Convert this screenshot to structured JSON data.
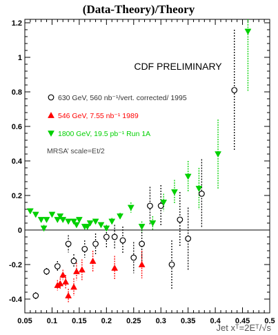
{
  "chart_data": {
    "type": "scatter",
    "title": "(Data-Theory)/Theory",
    "xlabel": "Jet xᵀ=2Eᵀ/√s",
    "ylabel": "",
    "xlim": [
      0.05,
      0.5
    ],
    "ylim": [
      -0.48,
      1.22
    ],
    "x_ticks": [
      "0.05",
      "0.1",
      "0.15",
      "0.2",
      "0.25",
      "0.3",
      "0.35",
      "0.4",
      "0.45",
      "0.5"
    ],
    "y_ticks": [
      "-0.4",
      "-0.2",
      "0",
      "0.2",
      "0.4",
      "0.6",
      "0.8",
      "1",
      "1.2"
    ],
    "annotation": "CDF PRELIMINARY",
    "grid": false,
    "legend_position": "left",
    "legend_note": "MRSA’ scale=Et/2",
    "series": [
      {
        "name": "630 GeV, 560 nb⁻¹/vert. corrected/ 1995",
        "marker": "open-circle",
        "color": "#000000",
        "points": [
          {
            "x": 0.07,
            "y": -0.38,
            "err": 0.02
          },
          {
            "x": 0.09,
            "y": -0.24,
            "err": 0.02
          },
          {
            "x": 0.11,
            "y": -0.21,
            "err": 0.03
          },
          {
            "x": 0.13,
            "y": -0.08,
            "err": 0.05
          },
          {
            "x": 0.14,
            "y": -0.18,
            "err": 0.04
          },
          {
            "x": 0.16,
            "y": -0.11,
            "err": 0.05
          },
          {
            "x": 0.18,
            "y": -0.08,
            "err": 0.06
          },
          {
            "x": 0.2,
            "y": -0.04,
            "err": 0.06
          },
          {
            "x": 0.215,
            "y": -0.04,
            "err": 0.07
          },
          {
            "x": 0.23,
            "y": -0.06,
            "err": 0.08
          },
          {
            "x": 0.25,
            "y": -0.16,
            "err": 0.09
          },
          {
            "x": 0.265,
            "y": -0.08,
            "err": 0.1
          },
          {
            "x": 0.28,
            "y": 0.14,
            "err": 0.11
          },
          {
            "x": 0.3,
            "y": 0.14,
            "err": 0.12
          },
          {
            "x": 0.32,
            "y": -0.2,
            "err": 0.14
          },
          {
            "x": 0.335,
            "y": 0.06,
            "err": 0.16
          },
          {
            "x": 0.35,
            "y": -0.05,
            "err": 0.18
          },
          {
            "x": 0.375,
            "y": 0.21,
            "err": 0.2
          },
          {
            "x": 0.435,
            "y": 0.81,
            "err": 0.35
          }
        ]
      },
      {
        "name": "546 GeV, 7.55 nb⁻¹ 1989",
        "marker": "filled-triangle-up",
        "color": "#ff0000",
        "points": [
          {
            "x": 0.11,
            "y": -0.32,
            "err": 0.03
          },
          {
            "x": 0.115,
            "y": -0.31,
            "err": 0.03
          },
          {
            "x": 0.12,
            "y": -0.26,
            "err": 0.03
          },
          {
            "x": 0.125,
            "y": -0.3,
            "err": 0.04
          },
          {
            "x": 0.13,
            "y": -0.38,
            "err": 0.04
          },
          {
            "x": 0.14,
            "y": -0.33,
            "err": 0.05
          },
          {
            "x": 0.145,
            "y": -0.24,
            "err": 0.05
          },
          {
            "x": 0.155,
            "y": -0.23,
            "err": 0.06
          },
          {
            "x": 0.175,
            "y": -0.18,
            "err": 0.06
          },
          {
            "x": 0.215,
            "y": -0.22,
            "err": 0.07
          },
          {
            "x": 0.265,
            "y": -0.2,
            "err": 0.08
          }
        ]
      },
      {
        "name": "1800 GeV, 19.5 pb⁻¹ Run 1A",
        "marker": "filled-triangle-down",
        "color": "#00d000",
        "points": [
          {
            "x": 0.06,
            "y": 0.11,
            "err": 0.01
          },
          {
            "x": 0.07,
            "y": 0.09,
            "err": 0.01
          },
          {
            "x": 0.08,
            "y": 0.06,
            "err": 0.01
          },
          {
            "x": 0.085,
            "y": 0.01,
            "err": 0.02
          },
          {
            "x": 0.09,
            "y": 0.06,
            "err": 0.01
          },
          {
            "x": 0.1,
            "y": 0.09,
            "err": 0.01
          },
          {
            "x": 0.11,
            "y": 0.06,
            "err": 0.01
          },
          {
            "x": 0.115,
            "y": 0.08,
            "err": 0.01
          },
          {
            "x": 0.12,
            "y": 0.06,
            "err": 0.01
          },
          {
            "x": 0.13,
            "y": 0.05,
            "err": 0.01
          },
          {
            "x": 0.14,
            "y": 0.05,
            "err": 0.01
          },
          {
            "x": 0.145,
            "y": 0.03,
            "err": 0.01
          },
          {
            "x": 0.15,
            "y": 0.06,
            "err": 0.01
          },
          {
            "x": 0.16,
            "y": 0.02,
            "err": 0.01
          },
          {
            "x": 0.165,
            "y": 0.02,
            "err": 0.01
          },
          {
            "x": 0.17,
            "y": 0.04,
            "err": 0.01
          },
          {
            "x": 0.18,
            "y": 0.05,
            "err": 0.01
          },
          {
            "x": 0.19,
            "y": 0.03,
            "err": 0.01
          },
          {
            "x": 0.2,
            "y": 0.01,
            "err": 0.02
          },
          {
            "x": 0.21,
            "y": 0.05,
            "err": 0.02
          },
          {
            "x": 0.225,
            "y": 0.08,
            "err": 0.02
          },
          {
            "x": 0.245,
            "y": 0.13,
            "err": 0.03
          },
          {
            "x": 0.265,
            "y": 0.02,
            "err": 0.03
          },
          {
            "x": 0.285,
            "y": 0.04,
            "err": 0.04
          },
          {
            "x": 0.305,
            "y": 0.16,
            "err": 0.05
          },
          {
            "x": 0.325,
            "y": 0.22,
            "err": 0.07
          },
          {
            "x": 0.35,
            "y": 0.31,
            "err": 0.09
          },
          {
            "x": 0.37,
            "y": 0.24,
            "err": 0.12
          },
          {
            "x": 0.405,
            "y": 0.44,
            "err": 0.2
          },
          {
            "x": 0.46,
            "y": 1.15,
            "err": 0.35
          }
        ]
      }
    ]
  }
}
